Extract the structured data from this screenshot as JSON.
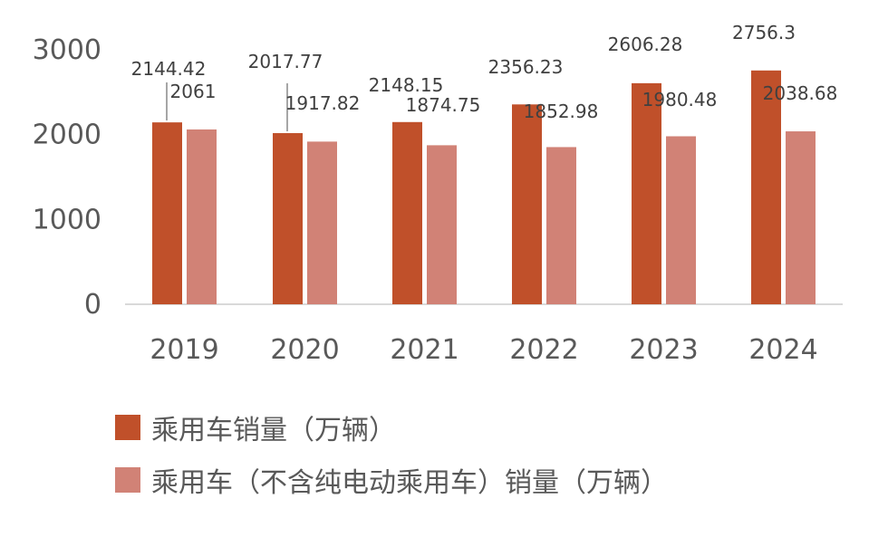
{
  "chart_data": {
    "type": "bar",
    "categories": [
      "2019",
      "2020",
      "2021",
      "2022",
      "2023",
      "2024"
    ],
    "series": [
      {
        "name": "乘用车销量（万辆）",
        "color": "#C0502A",
        "values": [
          2144.42,
          2017.77,
          2148.15,
          2356.23,
          2606.28,
          2756.3
        ],
        "labels": [
          "2144.42",
          "2017.77",
          "2148.15",
          "2356.23",
          "2606.28",
          "2756.3"
        ]
      },
      {
        "name": "乘用车（不含纯电动乘用车）销量（万辆）",
        "color": "#D18276",
        "values": [
          2061,
          1917.82,
          1874.75,
          1852.98,
          1980.48,
          2038.68
        ],
        "labels": [
          "2061",
          "1917.82",
          "1874.75",
          "1852.98",
          "1980.48",
          "2038.68"
        ]
      }
    ],
    "yticks": [
      "0",
      "1000",
      "2000",
      "3000"
    ],
    "ylim": [
      0,
      3000
    ],
    "title": "",
    "xlabel": "",
    "ylabel": "",
    "grid": false,
    "legend_position": "bottom"
  }
}
